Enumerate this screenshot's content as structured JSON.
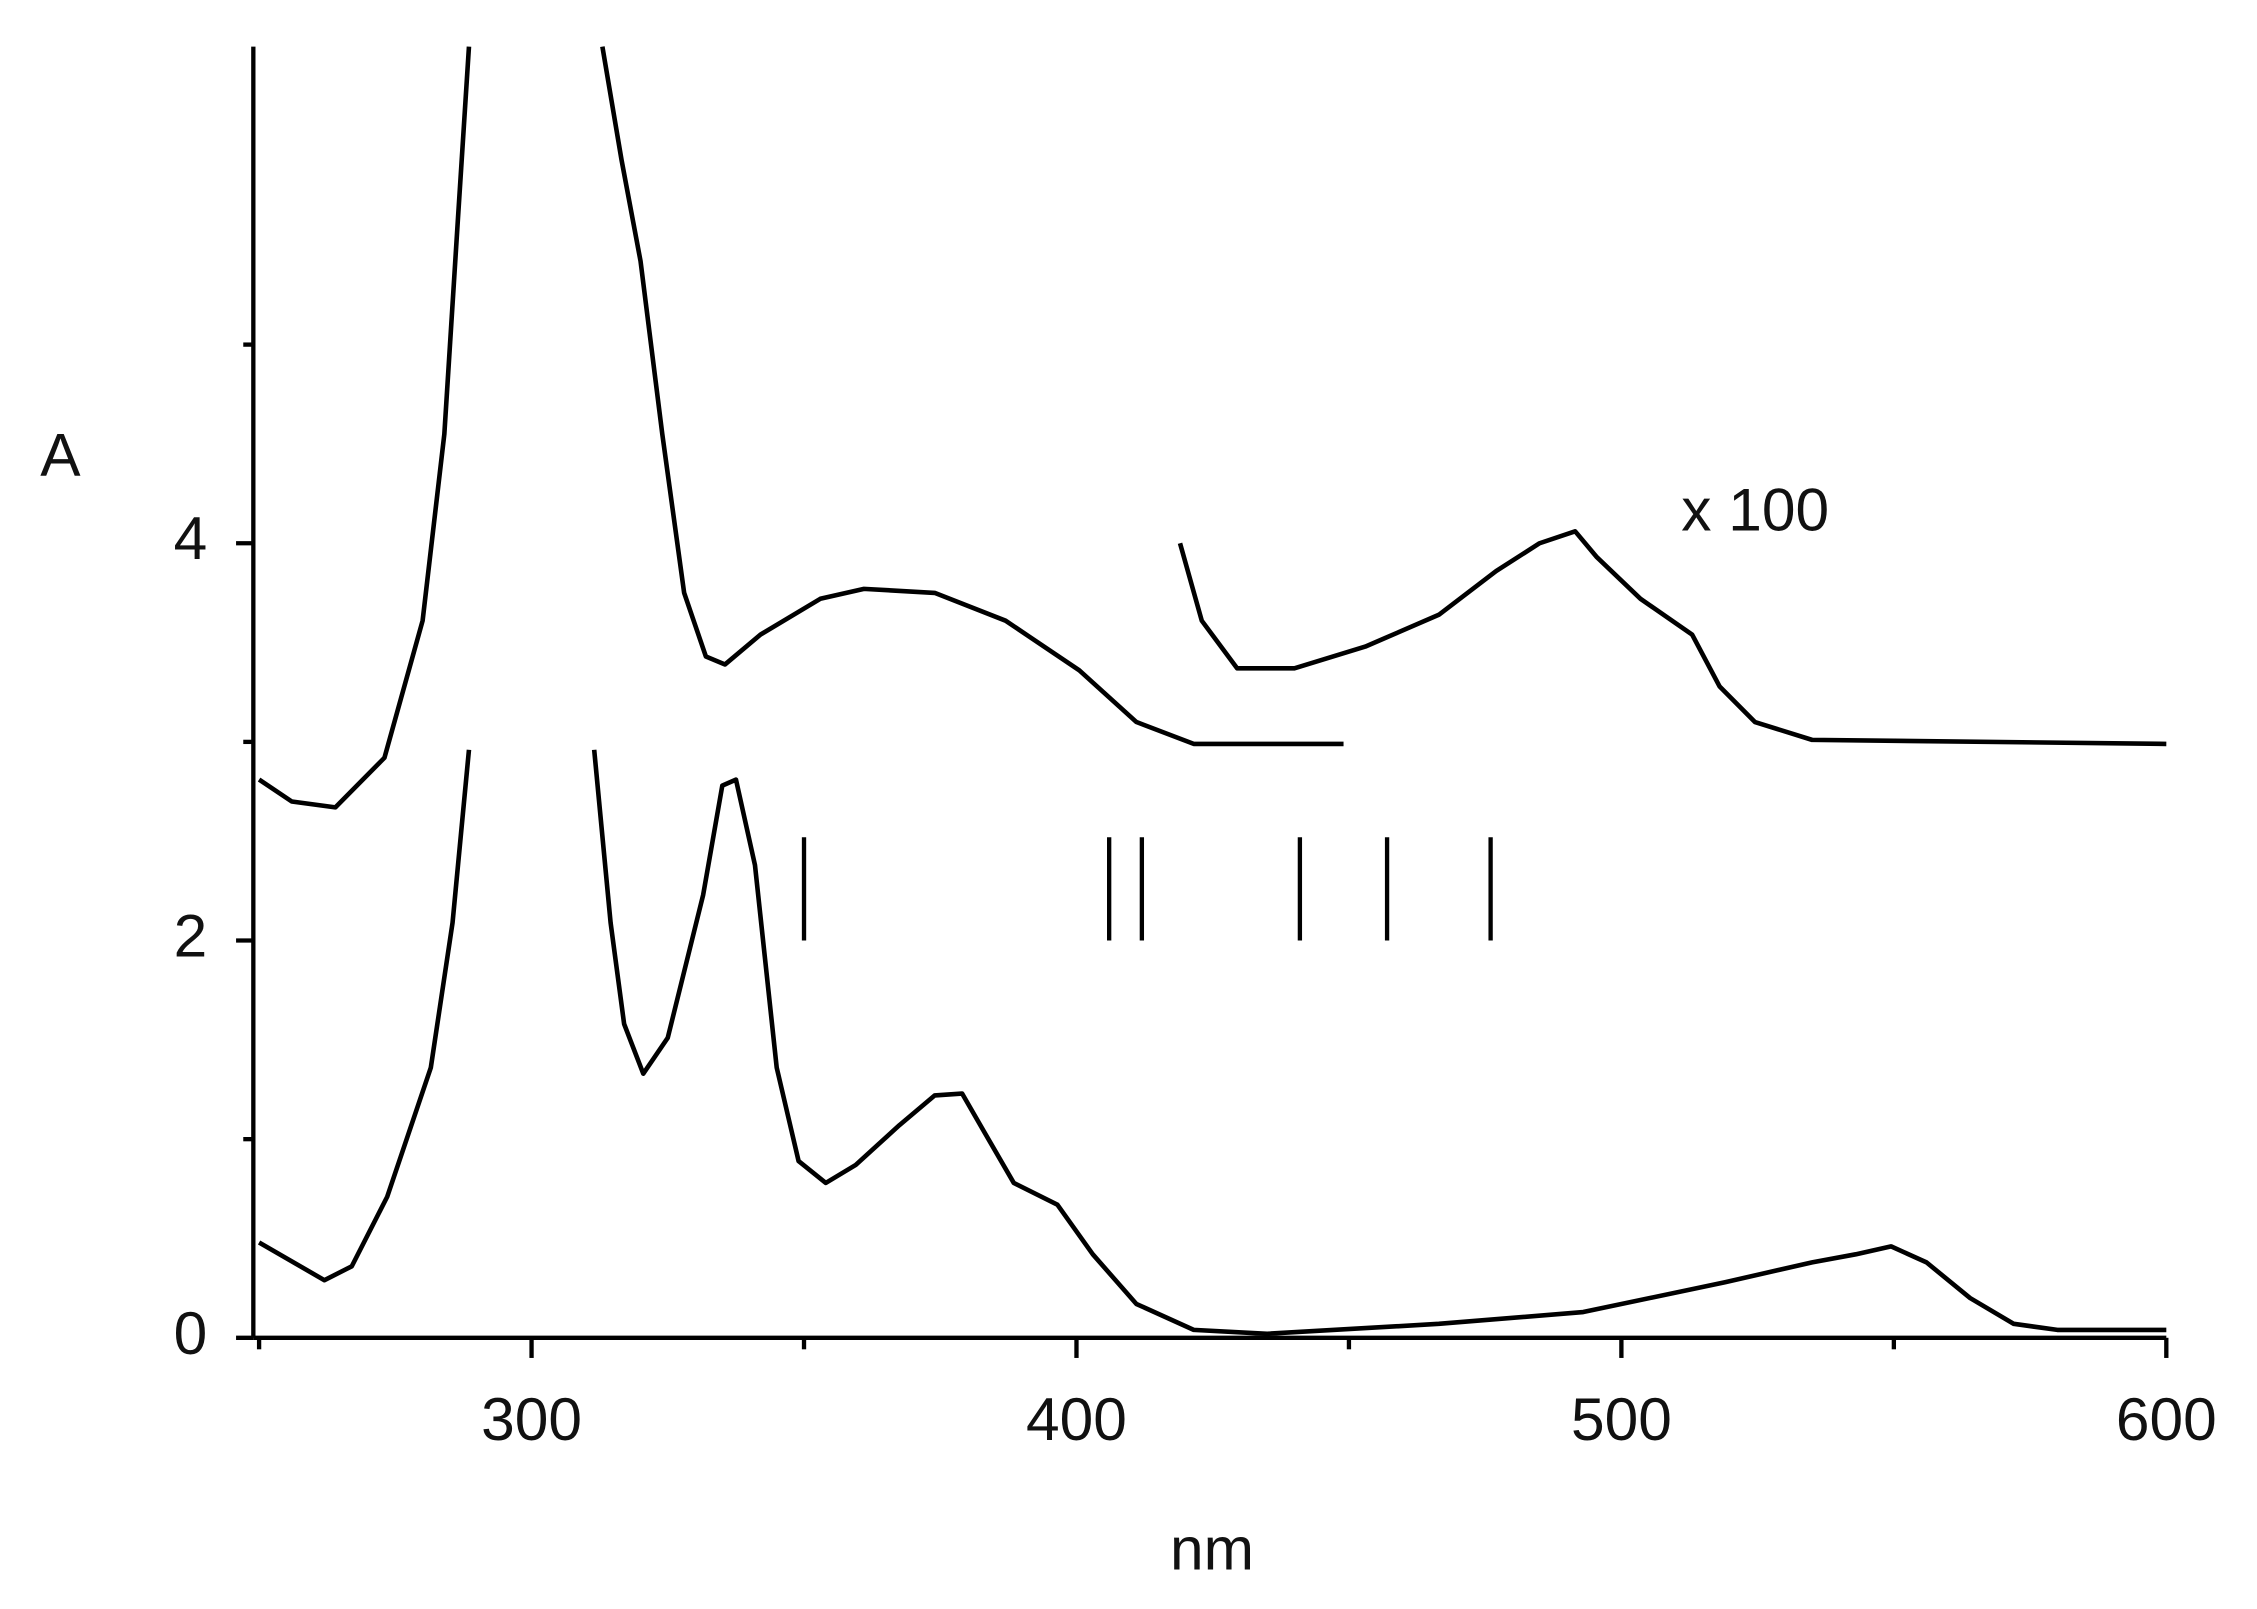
{
  "chart_data": {
    "type": "line",
    "xlabel": "nm",
    "ylabel": "A",
    "annotation": "x 100",
    "xlim": [
      250,
      600
    ],
    "xticks": [
      300,
      400,
      500,
      600
    ],
    "xminorticks": [
      250,
      350,
      450,
      550
    ],
    "ylim": [
      0,
      6.5
    ],
    "yticks": [
      0,
      2,
      4
    ],
    "yminorticks": [
      1,
      3,
      5
    ],
    "series": [
      {
        "color": "#000000",
        "x": [
          250,
          262,
          267,
          273.5,
          281.5,
          285.5,
          288.5,
          300,
          311.5,
          314.5,
          317,
          320.5,
          325,
          331.5,
          335,
          337.5,
          341,
          345,
          349,
          354,
          359.5,
          367.5,
          374,
          379,
          383,
          388.5,
          396.5,
          403,
          411,
          421.5,
          435,
          466.5,
          493,
          519,
          535,
          543,
          549.5,
          556,
          564,
          572,
          580,
          600
        ],
        "values": [
          0.48,
          0.29,
          0.36,
          0.71,
          1.36,
          2.09,
          2.96,
          null,
          2.96,
          2.09,
          1.58,
          1.33,
          1.51,
          2.23,
          2.78,
          2.81,
          2.38,
          1.36,
          0.89,
          0.78,
          0.87,
          1.07,
          1.22,
          1.23,
          1.04,
          0.78,
          0.67,
          0.42,
          0.17,
          0.04,
          0.02,
          0.07,
          0.13,
          0.28,
          0.38,
          0.42,
          0.46,
          0.38,
          0.2,
          0.07,
          0.04,
          0.04
        ]
      },
      {
        "color": "#000000",
        "x": [
          250,
          256,
          264,
          273,
          280,
          284,
          286.5,
          288.5,
          300,
          313,
          316.5,
          320,
          324,
          328,
          332,
          335.5,
          342,
          353,
          361,
          374,
          387,
          400.5,
          411,
          421.5,
          449
        ],
        "values": [
          2.81,
          2.7,
          2.67,
          2.92,
          3.61,
          4.55,
          5.64,
          6.5,
          null,
          6.5,
          5.93,
          5.42,
          4.55,
          3.75,
          3.43,
          3.39,
          3.54,
          3.72,
          3.77,
          3.75,
          3.61,
          3.36,
          3.1,
          2.99,
          2.99
        ]
      },
      {
        "color": "#000000",
        "x": [
          419,
          423,
          429.5,
          440,
          453,
          466.5,
          477,
          485,
          491.5,
          495.5,
          503.5,
          513,
          518,
          524.5,
          535,
          600
        ],
        "values": [
          4.0,
          3.61,
          3.37,
          3.37,
          3.48,
          3.64,
          3.86,
          4.0,
          4.06,
          3.93,
          3.72,
          3.54,
          3.28,
          3.1,
          3.01,
          2.99
        ]
      }
    ],
    "markers": {
      "x": [
        350,
        406,
        412,
        441,
        457,
        476
      ],
      "ymin": 2,
      "ymax": 2.52
    }
  }
}
